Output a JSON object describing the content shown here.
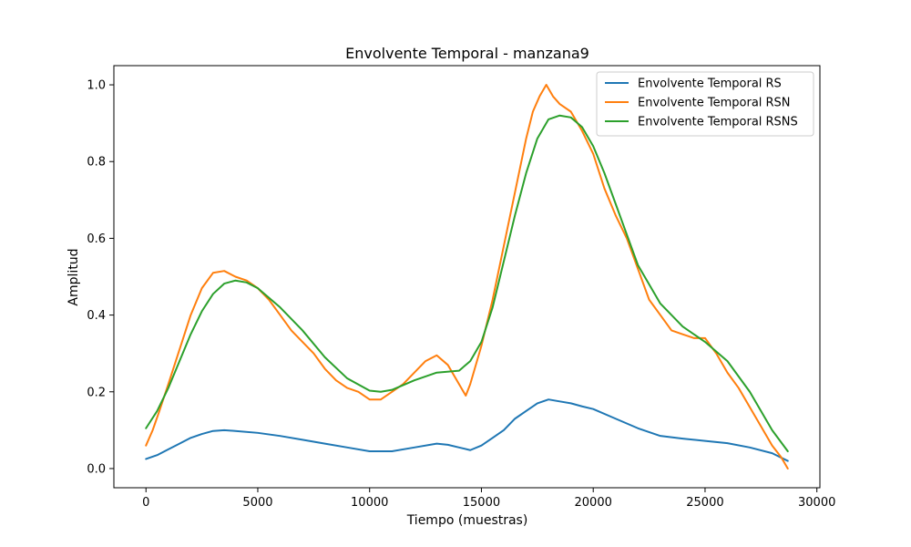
{
  "chart_data": {
    "type": "line",
    "title": "Envolvente Temporal - manzana9",
    "xlabel": "Tiempo (muestras)",
    "ylabel": "Amplitud",
    "xlim": [
      -1435,
      30135
    ],
    "ylim": [
      -0.05,
      1.05
    ],
    "xticks": [
      0,
      5000,
      10000,
      15000,
      20000,
      25000,
      30000
    ],
    "xtick_labels": [
      "0",
      "5000",
      "10000",
      "15000",
      "20000",
      "25000",
      "30000"
    ],
    "yticks": [
      0.0,
      0.2,
      0.4,
      0.6,
      0.8,
      1.0
    ],
    "ytick_labels": [
      "0.0",
      "0.2",
      "0.4",
      "0.6",
      "0.8",
      "1.0"
    ],
    "grid": false,
    "legend_position": "top-right",
    "series": [
      {
        "name": "Envolvente Temporal RS",
        "color": "#1f77b4",
        "x": [
          0,
          500,
          1000,
          1500,
          2000,
          2500,
          3000,
          3500,
          4000,
          5000,
          6000,
          7000,
          8000,
          9000,
          10000,
          11000,
          12000,
          13000,
          13500,
          14000,
          14500,
          15000,
          15500,
          16000,
          16500,
          17000,
          17500,
          18000,
          18500,
          19000,
          19500,
          20000,
          21000,
          22000,
          23000,
          24000,
          25000,
          26000,
          27000,
          28000,
          28700
        ],
        "y": [
          0.025,
          0.035,
          0.05,
          0.065,
          0.08,
          0.09,
          0.098,
          0.1,
          0.098,
          0.093,
          0.085,
          0.075,
          0.065,
          0.055,
          0.045,
          0.045,
          0.055,
          0.065,
          0.062,
          0.055,
          0.048,
          0.06,
          0.08,
          0.1,
          0.13,
          0.15,
          0.17,
          0.18,
          0.175,
          0.17,
          0.162,
          0.155,
          0.13,
          0.105,
          0.085,
          0.078,
          0.072,
          0.066,
          0.055,
          0.04,
          0.02
        ]
      },
      {
        "name": "Envolvente Temporal RSN",
        "color": "#ff7f0e",
        "x": [
          0,
          300,
          600,
          1000,
          1500,
          2000,
          2500,
          3000,
          3500,
          4000,
          4500,
          5000,
          5500,
          6000,
          6500,
          7000,
          7500,
          8000,
          8500,
          9000,
          9500,
          10000,
          10500,
          11000,
          11500,
          12000,
          12500,
          13000,
          13500,
          14000,
          14300,
          14500,
          15000,
          15500,
          16000,
          16500,
          17000,
          17300,
          17600,
          17900,
          18200,
          18500,
          19000,
          19500,
          20000,
          20500,
          21000,
          21500,
          22000,
          22500,
          23000,
          23500,
          24000,
          24500,
          25000,
          25500,
          26000,
          26500,
          27000,
          27500,
          28000,
          28400,
          28700
        ],
        "y": [
          0.06,
          0.1,
          0.15,
          0.22,
          0.31,
          0.4,
          0.47,
          0.51,
          0.515,
          0.5,
          0.49,
          0.47,
          0.44,
          0.4,
          0.36,
          0.33,
          0.3,
          0.26,
          0.23,
          0.21,
          0.2,
          0.18,
          0.18,
          0.2,
          0.22,
          0.25,
          0.28,
          0.295,
          0.27,
          0.22,
          0.19,
          0.22,
          0.32,
          0.44,
          0.58,
          0.72,
          0.86,
          0.93,
          0.97,
          1.0,
          0.97,
          0.95,
          0.93,
          0.88,
          0.82,
          0.73,
          0.66,
          0.6,
          0.52,
          0.44,
          0.4,
          0.36,
          0.35,
          0.34,
          0.34,
          0.3,
          0.25,
          0.21,
          0.16,
          0.11,
          0.06,
          0.03,
          0.0
        ]
      },
      {
        "name": "Envolvente Temporal RSNS",
        "color": "#2ca02c",
        "x": [
          0,
          500,
          1000,
          1500,
          2000,
          2500,
          3000,
          3500,
          4000,
          4500,
          5000,
          6000,
          7000,
          8000,
          9000,
          10000,
          10500,
          11000,
          12000,
          13000,
          14000,
          14500,
          15000,
          15500,
          16000,
          16500,
          17000,
          17500,
          18000,
          18500,
          19000,
          19500,
          20000,
          20500,
          21000,
          21500,
          22000,
          23000,
          24000,
          25000,
          26000,
          27000,
          28000,
          28700
        ],
        "y": [
          0.105,
          0.15,
          0.21,
          0.28,
          0.35,
          0.41,
          0.455,
          0.482,
          0.49,
          0.485,
          0.47,
          0.42,
          0.36,
          0.29,
          0.235,
          0.203,
          0.2,
          0.205,
          0.23,
          0.25,
          0.255,
          0.28,
          0.33,
          0.42,
          0.54,
          0.66,
          0.77,
          0.86,
          0.91,
          0.92,
          0.915,
          0.89,
          0.84,
          0.77,
          0.69,
          0.61,
          0.53,
          0.43,
          0.37,
          0.33,
          0.28,
          0.2,
          0.1,
          0.045
        ]
      }
    ]
  }
}
